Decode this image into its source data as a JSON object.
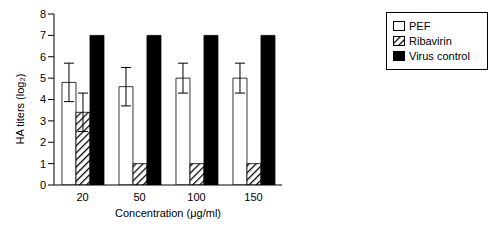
{
  "chart_data": {
    "type": "bar",
    "x_label": "Concentration (μg/ml)",
    "y_label": "HA titers (log₂)",
    "categories": [
      "20",
      "50",
      "100",
      "150"
    ],
    "series": [
      {
        "name": "PEF",
        "color": "#ffffff",
        "values": [
          4.8,
          4.6,
          5.0,
          5.0
        ],
        "errors": [
          0.9,
          0.9,
          0.7,
          0.7
        ]
      },
      {
        "name": "Ribavirin",
        "color": "#000000",
        "values": [
          3.4,
          1,
          1,
          1
        ],
        "errors": [
          0.9,
          null,
          null,
          null
        ]
      },
      {
        "name": "Virus control",
        "color": "#000000",
        "values": [
          7,
          7,
          7,
          7
        ]
      }
    ],
    "ylim": [
      0,
      8
    ],
    "yticks": [
      0,
      1,
      2,
      3,
      4,
      5,
      6,
      7,
      8
    ],
    "grid": false,
    "legend": "upper right"
  }
}
